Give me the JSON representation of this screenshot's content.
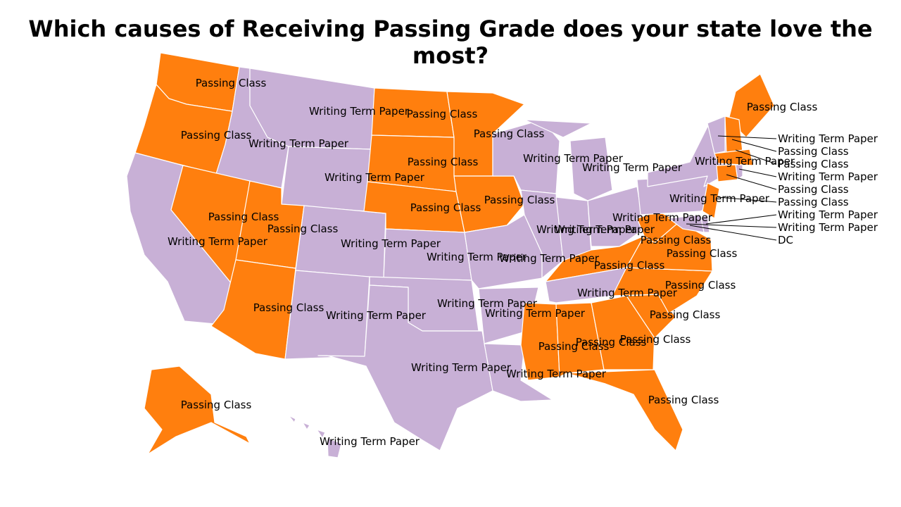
{
  "title_line1": "Which causes of Receiving Passing Grade does your state love the",
  "title_line2": "most?",
  "legend_colors": {
    "Passing Class": "#ff7f0e",
    "Writing Term Paper": "#c8b0d6"
  },
  "states": [
    {
      "id": "WA",
      "answer": "Passing Class"
    },
    {
      "id": "OR",
      "answer": "Passing Class"
    },
    {
      "id": "CA",
      "answer": "Writing Term Paper"
    },
    {
      "id": "ID",
      "answer": "Writing Term Paper"
    },
    {
      "id": "NV",
      "answer": "Passing Class"
    },
    {
      "id": "MT",
      "answer": "Writing Term Paper"
    },
    {
      "id": "WY",
      "answer": "Writing Term Paper"
    },
    {
      "id": "UT",
      "answer": "Passing Class"
    },
    {
      "id": "AZ",
      "answer": "Passing Class"
    },
    {
      "id": "CO",
      "answer": "Writing Term Paper"
    },
    {
      "id": "NM",
      "answer": "Writing Term Paper"
    },
    {
      "id": "ND",
      "answer": "Passing Class"
    },
    {
      "id": "SD",
      "answer": "Passing Class"
    },
    {
      "id": "NE",
      "answer": "Passing Class"
    },
    {
      "id": "KS",
      "answer": "Writing Term Paper"
    },
    {
      "id": "OK",
      "answer": "Writing Term Paper"
    },
    {
      "id": "TX",
      "answer": "Writing Term Paper"
    },
    {
      "id": "MN",
      "answer": "Passing Class"
    },
    {
      "id": "IA",
      "answer": "Passing Class"
    },
    {
      "id": "MO",
      "answer": "Writing Term Paper"
    },
    {
      "id": "AR",
      "answer": "Writing Term Paper"
    },
    {
      "id": "LA",
      "answer": "Writing Term Paper"
    },
    {
      "id": "WI",
      "answer": "Writing Term Paper"
    },
    {
      "id": "IL",
      "answer": "Writing Term Paper"
    },
    {
      "id": "MI",
      "answer": "Writing Term Paper"
    },
    {
      "id": "IN",
      "answer": "Writing Term Paper"
    },
    {
      "id": "OH",
      "answer": "Writing Term Paper"
    },
    {
      "id": "KY",
      "answer": "Passing Class"
    },
    {
      "id": "TN",
      "answer": "Writing Term Paper"
    },
    {
      "id": "MS",
      "answer": "Passing Class"
    },
    {
      "id": "AL",
      "answer": "Passing Class"
    },
    {
      "id": "GA",
      "answer": "Passing Class"
    },
    {
      "id": "FL",
      "answer": "Passing Class"
    },
    {
      "id": "SC",
      "answer": "Passing Class"
    },
    {
      "id": "NC",
      "answer": "Passing Class"
    },
    {
      "id": "VA",
      "answer": "Passing Class"
    },
    {
      "id": "WV",
      "answer": "Passing Class"
    },
    {
      "id": "PA",
      "answer": "Writing Term Paper"
    },
    {
      "id": "NY",
      "answer": "Writing Term Paper"
    },
    {
      "id": "ME",
      "answer": "Passing Class"
    },
    {
      "id": "VT",
      "answer": "Writing Term Paper"
    },
    {
      "id": "NH",
      "answer": "Passing Class"
    },
    {
      "id": "MA",
      "answer": "Passing Class"
    },
    {
      "id": "CT",
      "answer": "Passing Class"
    },
    {
      "id": "RI",
      "answer": "Writing Term Paper"
    },
    {
      "id": "NJ",
      "answer": "Passing Class"
    },
    {
      "id": "DE",
      "answer": "Writing Term Paper"
    },
    {
      "id": "MD",
      "answer": "Writing Term Paper"
    },
    {
      "id": "AK",
      "answer": "Passing Class"
    },
    {
      "id": "HI",
      "answer": "Writing Term Paper"
    },
    {
      "id": "DC",
      "answer": "DC"
    }
  ]
}
